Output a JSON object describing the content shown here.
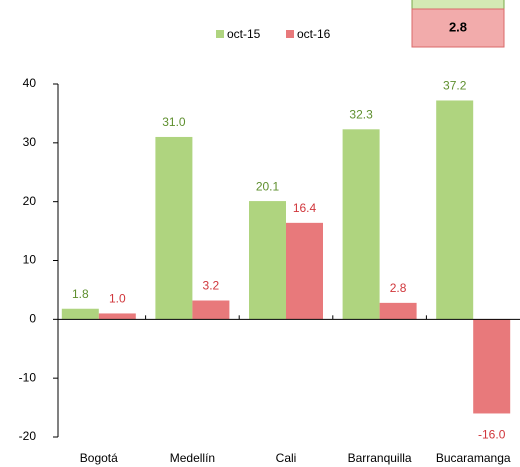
{
  "chart_data": {
    "type": "bar",
    "categories": [
      "Bogotá",
      "Medellín",
      "Cali",
      "Barranquilla",
      "Bucaramanga"
    ],
    "series": [
      {
        "name": "oct-15",
        "color": "#afd47f",
        "values": [
          1.8,
          31.0,
          20.1,
          32.3,
          37.2
        ],
        "value_labels": [
          "1.8",
          "31.0",
          "20.1",
          "32.3",
          "37.2"
        ]
      },
      {
        "name": "oct-16",
        "color": "#e8797b",
        "values": [
          1.0,
          3.2,
          16.4,
          2.8,
          -16.0
        ],
        "value_labels": [
          "1.0",
          "3.2",
          "16.4",
          "2.8",
          "-16.0"
        ]
      }
    ],
    "ylim": [
      -20,
      40
    ],
    "yticks": [
      -20,
      -10,
      0,
      10,
      20,
      30,
      40
    ],
    "annotation": "2.8"
  }
}
